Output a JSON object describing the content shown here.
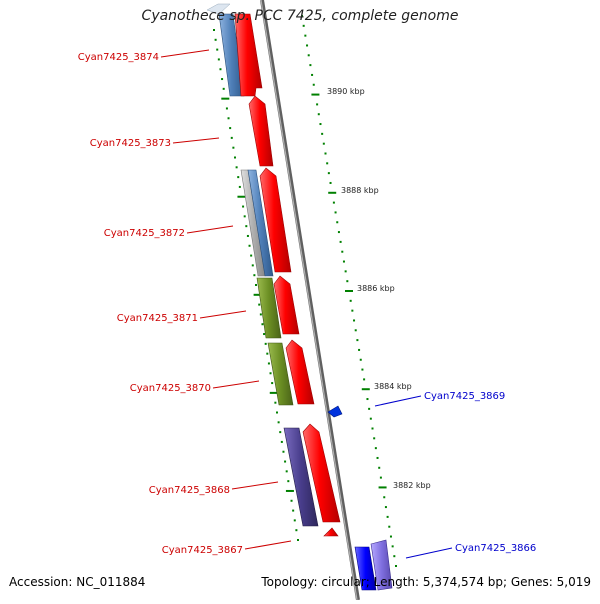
{
  "header": {
    "title": "Cyanothece sp. PCC 7425, complete genome"
  },
  "footer": {
    "accession": "Accession: NC_011884",
    "summary": "Topology: circular; Length: 5,374,574 bp; Genes: 5,019"
  },
  "colors": {
    "forward_gene": "#ff0000",
    "reverse_label": "#0000cc",
    "forward_label": "#cc0000",
    "backbone": "#808080",
    "tick": "#008000",
    "blue_feature": "#4f7fb8",
    "olive_feature": "#6b8e23",
    "purple_feature": "#483d8b",
    "grey_feature": "#b0b0b0"
  },
  "scale_labels": [
    "3890 kbp",
    "3888 kbp",
    "3886 kbp",
    "3884 kbp",
    "3882 kbp"
  ],
  "gene_labels_forward": [
    "Cyan7425_3874",
    "Cyan7425_3873",
    "Cyan7425_3872",
    "Cyan7425_3871",
    "Cyan7425_3870",
    "Cyan7425_3868",
    "Cyan7425_3867"
  ],
  "gene_labels_reverse": [
    "Cyan7425_3869",
    "Cyan7425_3866"
  ]
}
